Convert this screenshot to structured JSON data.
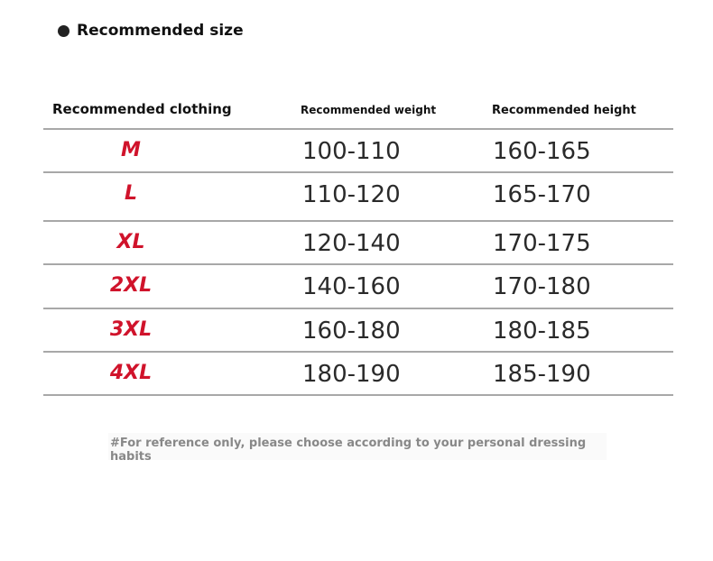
{
  "title": "Recommended size",
  "headers": {
    "clothing": "Recommended clothing",
    "weight": "Recommended weight",
    "height": "Recommended height"
  },
  "rows": [
    {
      "size": "M",
      "weight": "100-110",
      "height": "160-165"
    },
    {
      "size": "L",
      "weight": "110-120",
      "height": "165-170"
    },
    {
      "size": "XL",
      "weight": "120-140",
      "height": "170-175"
    },
    {
      "size": "2XL",
      "weight": "140-160",
      "height": "170-180"
    },
    {
      "size": "3XL",
      "weight": "160-180",
      "height": "180-185"
    },
    {
      "size": "4XL",
      "weight": "180-190",
      "height": "185-190"
    }
  ],
  "note": "#For reference only, please choose according to your personal dressing habits",
  "colors": {
    "size_text": "#d0132b",
    "rule": "#a8a8a8"
  }
}
